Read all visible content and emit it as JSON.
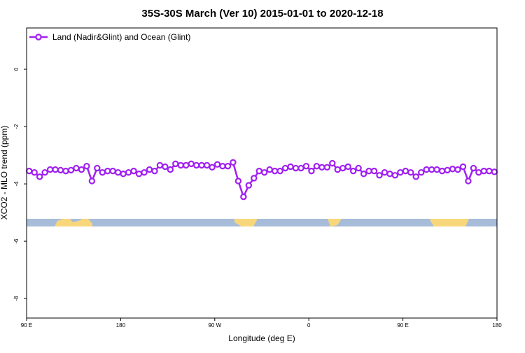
{
  "chart_data": {
    "type": "line",
    "title": "35S-30S March (Ver 10)   2015-01-01 to 2020-12-18",
    "xlabel": "Longitude (deg E)",
    "ylabel": "XCO2 - MLO trend (ppm)",
    "xlim": [
      90,
      540
    ],
    "ylim": [
      -8.68,
      1.44
    ],
    "xticks": [
      {
        "value": 90,
        "label": "90 E"
      },
      180,
      {
        "value": 270,
        "label": "90 W"
      },
      {
        "value": 360,
        "label": "0"
      },
      {
        "value": 450,
        "label": "90 E"
      },
      {
        "value": 540,
        "label": "180"
      }
    ],
    "yticks": [
      0,
      -2,
      -4,
      -6,
      -8
    ],
    "legend": "top-left",
    "x": [
      92.5,
      97.5,
      102.5,
      107.5,
      112.5,
      117.5,
      122.5,
      127.5,
      132.5,
      137.5,
      142.5,
      147.5,
      152.5,
      157.5,
      162.5,
      167.5,
      172.5,
      177.5,
      182.5,
      187.5,
      192.5,
      197.5,
      202.5,
      207.5,
      212.5,
      217.5,
      222.5,
      227.5,
      232.5,
      237.5,
      242.5,
      247.5,
      252.5,
      257.5,
      262.5,
      267.5,
      272.5,
      277.5,
      282.5,
      287.5,
      292.5,
      297.5,
      302.5,
      307.5,
      312.5,
      317.5,
      322.5,
      327.5,
      332.5,
      337.5,
      342.5,
      347.5,
      352.5,
      357.5,
      362.5,
      367.5,
      372.5,
      377.5,
      382.5,
      387.5,
      392.5,
      397.5,
      402.5,
      407.5,
      412.5,
      417.5,
      422.5,
      427.5,
      432.5,
      437.5,
      442.5,
      447.5,
      452.5,
      457.5,
      462.5,
      467.5,
      472.5,
      477.5,
      482.5,
      487.5,
      492.5,
      497.5,
      502.5,
      507.5,
      512.5,
      517.5,
      522.5,
      527.5,
      532.5,
      537.5
    ],
    "series": [
      {
        "name": "Land (Nadir&Glint) and Ocean (Glint)",
        "color": "#a020f0",
        "values": [
          -3.55,
          -3.6,
          -3.75,
          -3.6,
          -3.5,
          -3.5,
          -3.52,
          -3.55,
          -3.52,
          -3.45,
          -3.5,
          -3.38,
          -3.9,
          -3.45,
          -3.6,
          -3.55,
          -3.55,
          -3.6,
          -3.65,
          -3.6,
          -3.55,
          -3.65,
          -3.6,
          -3.5,
          -3.55,
          -3.35,
          -3.4,
          -3.5,
          -3.3,
          -3.35,
          -3.35,
          -3.3,
          -3.35,
          -3.35,
          -3.35,
          -3.42,
          -3.32,
          -3.38,
          -3.38,
          -3.25,
          -3.9,
          -4.45,
          -4.05,
          -3.8,
          -3.55,
          -3.6,
          -3.5,
          -3.55,
          -3.55,
          -3.45,
          -3.4,
          -3.45,
          -3.45,
          -3.38,
          -3.55,
          -3.38,
          -3.42,
          -3.42,
          -3.28,
          -3.5,
          -3.45,
          -3.4,
          -3.55,
          -3.45,
          -3.65,
          -3.55,
          -3.55,
          -3.7,
          -3.6,
          -3.65,
          -3.7,
          -3.6,
          -3.55,
          -3.6,
          -3.75,
          -3.6,
          -3.5,
          -3.5,
          -3.5,
          -3.55,
          -3.52,
          -3.48,
          -3.5,
          -3.4,
          -3.9,
          -3.45,
          -3.6,
          -3.55,
          -3.55,
          -3.58
        ]
      }
    ]
  }
}
